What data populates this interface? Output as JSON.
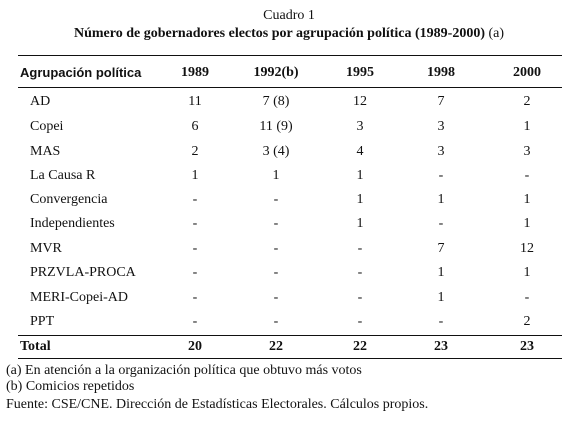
{
  "caption": "Cuadro 1",
  "title": "Número de gobernadores electos por agrupación política (1989-2000)",
  "title_note": "(a)",
  "table": {
    "headers": [
      "Agrupación política",
      "1989",
      "1992(b)",
      "1995",
      "1998",
      "2000"
    ],
    "rows": [
      [
        "AD",
        "11",
        "7 (8)",
        "12",
        "7",
        "2"
      ],
      [
        "Copei",
        "6",
        "11 (9)",
        "3",
        "3",
        "1"
      ],
      [
        "MAS",
        "2",
        "3 (4)",
        "4",
        "3",
        "3"
      ],
      [
        "La Causa R",
        "1",
        "1",
        "1",
        "-",
        "-"
      ],
      [
        "Convergencia",
        "-",
        "-",
        "1",
        "1",
        "1"
      ],
      [
        "Independientes",
        "-",
        "-",
        "1",
        "-",
        "1"
      ],
      [
        "MVR",
        "-",
        "-",
        "-",
        "7",
        "12"
      ],
      [
        "PRZVLA-PROCA",
        "-",
        "-",
        "-",
        "1",
        "1"
      ],
      [
        "MERI-Copei-AD",
        "-",
        "-",
        "-",
        "1",
        "-"
      ],
      [
        "PPT",
        "-",
        "-",
        "-",
        "-",
        "2"
      ]
    ],
    "total": [
      "Total",
      "20",
      "22",
      "22",
      "23",
      "23"
    ]
  },
  "notes": [
    "(a) En atención a la organización política que obtuvo más votos",
    "(b) Comicios repetidos",
    "Fuente: CSE/CNE. Dirección de Estadísticas Electorales. Cálculos propios."
  ]
}
